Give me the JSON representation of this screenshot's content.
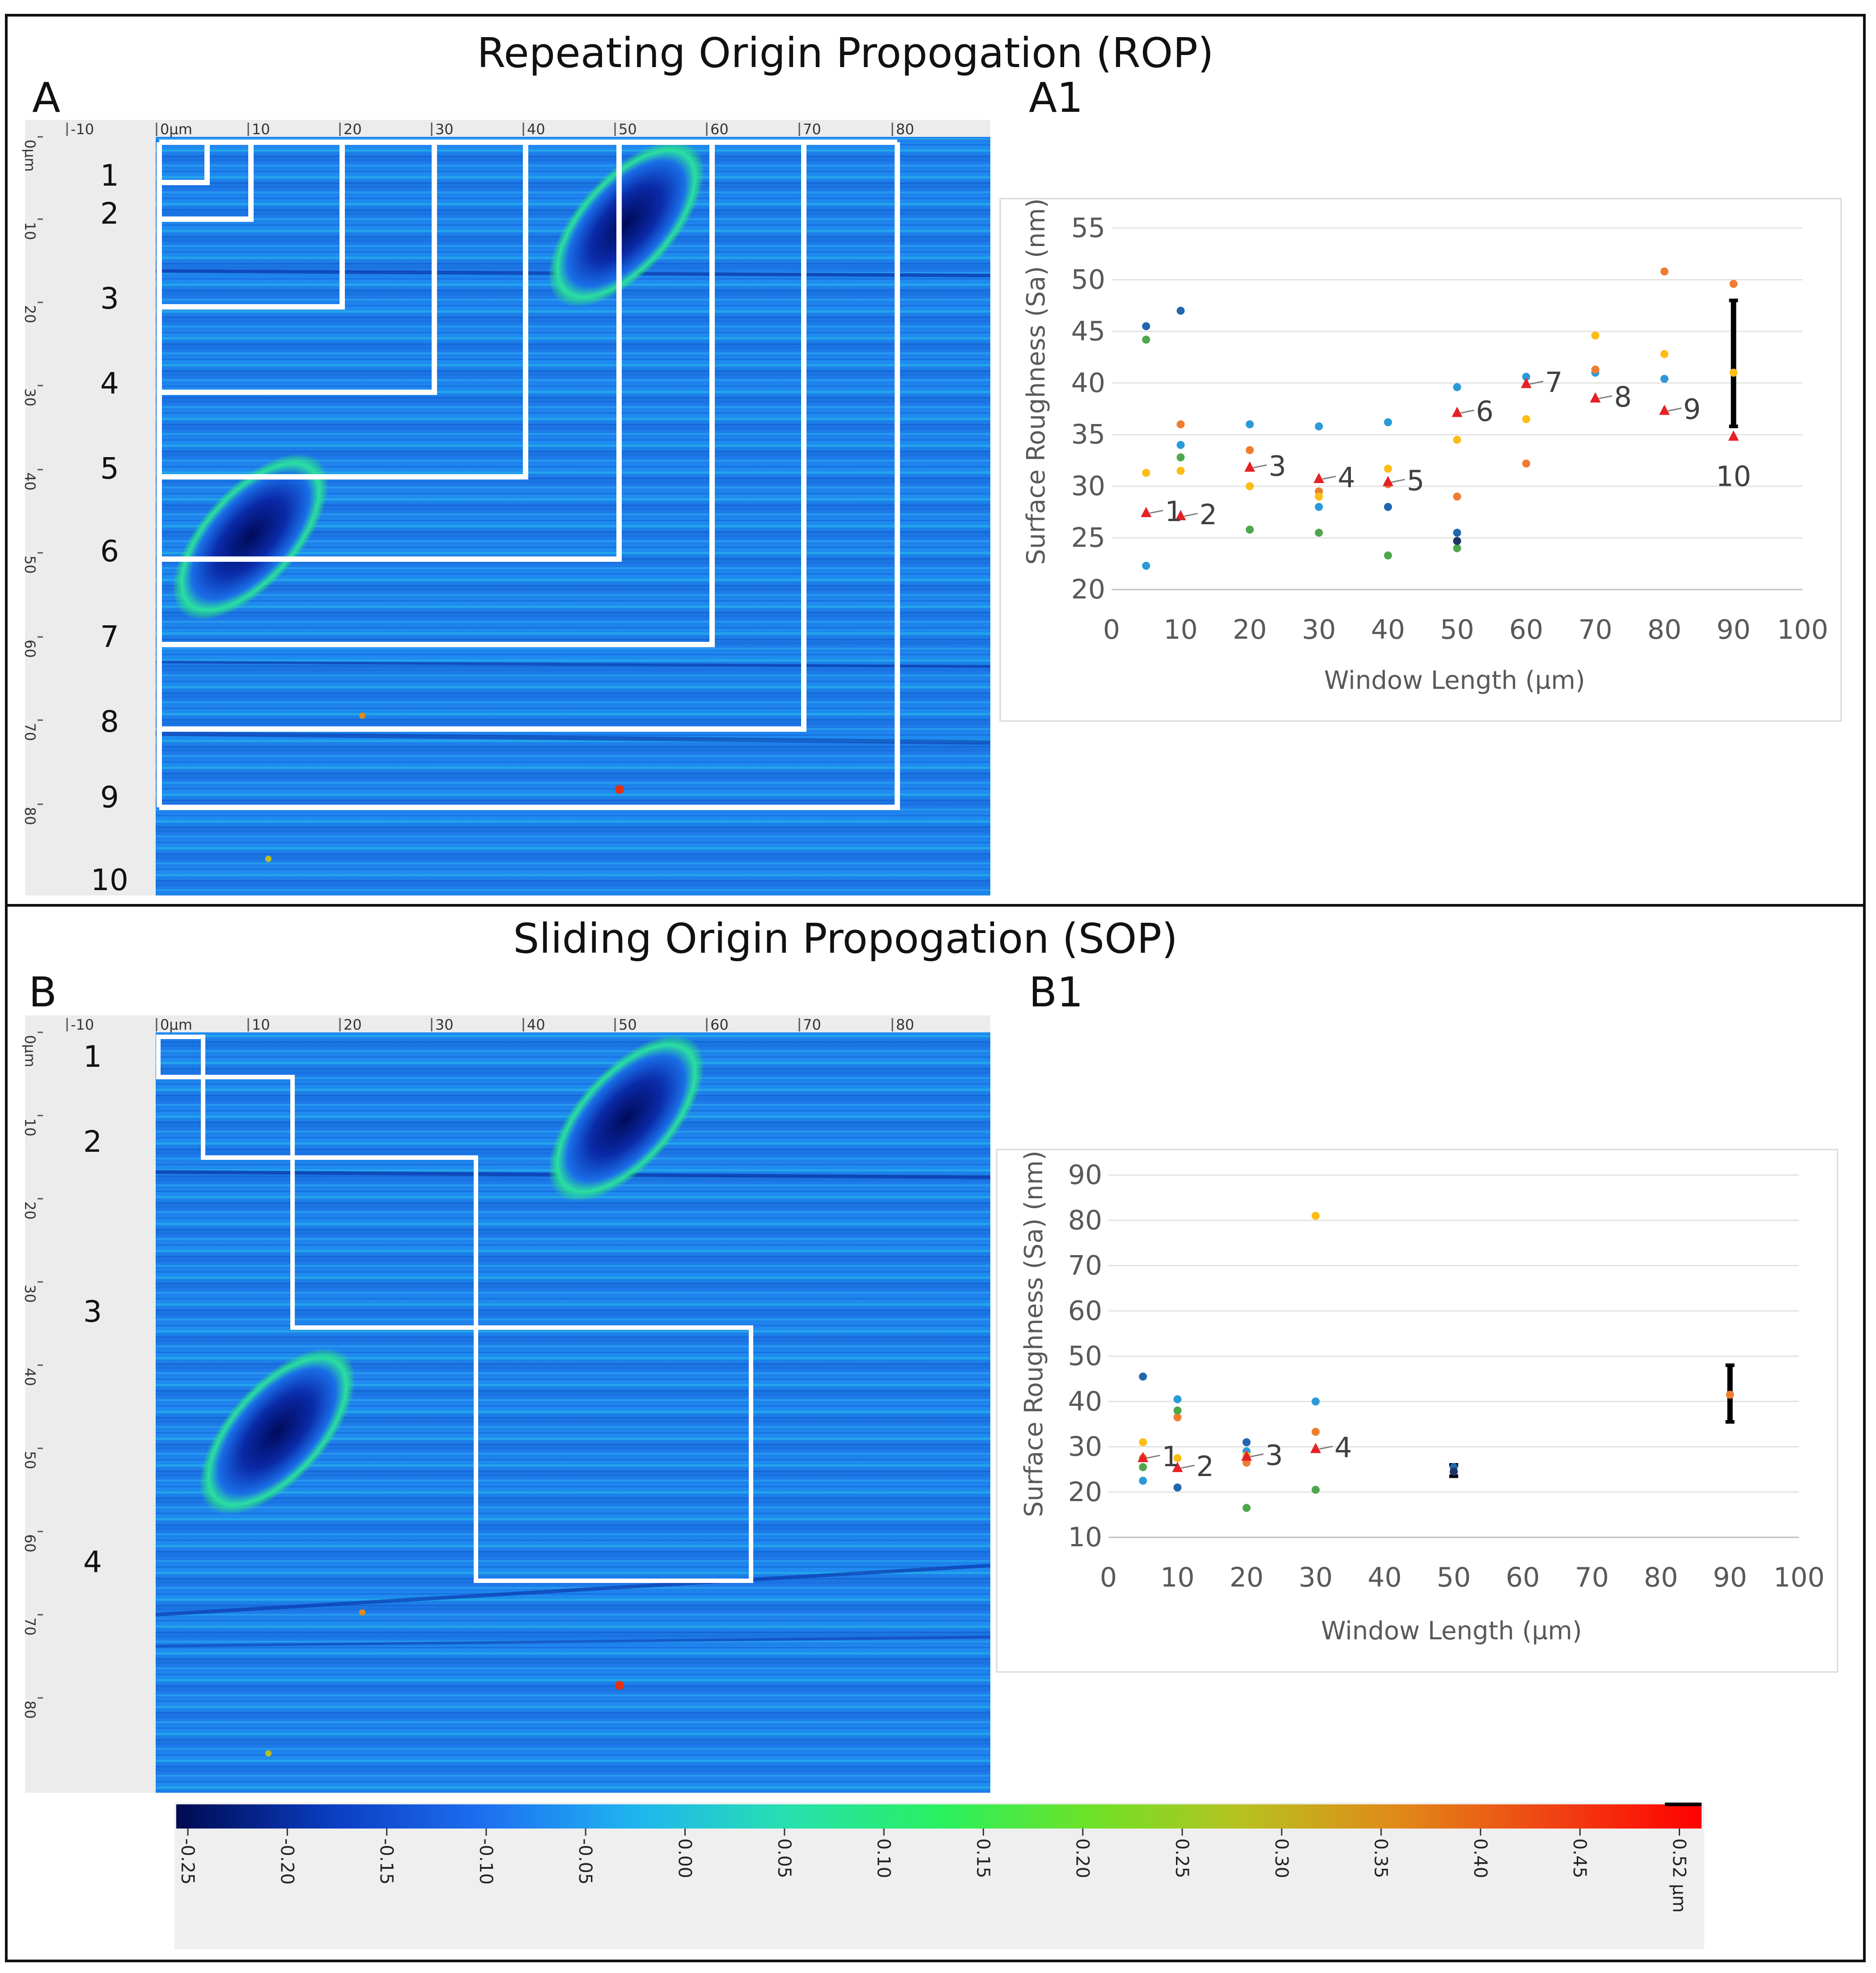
{
  "figure": {
    "panelA_title": "Repeating Origin Propogation (ROP)",
    "panelB_title": "Sliding Origin Propogation (SOP)",
    "labelA": "A",
    "labelA1": "A1",
    "labelB": "B",
    "labelB1": "B1"
  },
  "map": {
    "ruler_top": [
      "-10",
      "0µm",
      "10",
      "20",
      "30",
      "40",
      "50",
      "60",
      "70",
      "80"
    ],
    "ruler_left": [
      "0µm",
      "10",
      "20",
      "30",
      "40",
      "50",
      "60",
      "70",
      "80"
    ],
    "rop_windows": [
      "1",
      "2",
      "3",
      "4",
      "5",
      "6",
      "7",
      "8",
      "9",
      "10"
    ],
    "sop_windows": [
      "1",
      "2",
      "3",
      "4"
    ],
    "colorbar": {
      "ticks": [
        "-0.25",
        "-0.20",
        "-0.15",
        "-0.10",
        "-0.05",
        "0.00",
        "0.05",
        "0.10",
        "0.15",
        "0.20",
        "0.25",
        "0.30",
        "0.35",
        "0.40",
        "0.45",
        "0.52 µm"
      ],
      "colors": [
        "#000a50",
        "#0a3cc0",
        "#1e6ef0",
        "#1fb4f0",
        "#26e0b0",
        "#28f060",
        "#6ee228",
        "#b8c020",
        "#e08a18",
        "#f04414",
        "#ff0000"
      ]
    }
  },
  "chart_data": [
    {
      "id": "A1",
      "type": "scatter",
      "title": "",
      "xlabel": "Window Length (µm)",
      "ylabel": "Surface Roughness (Sa) (nm)",
      "xlim": [
        0,
        100
      ],
      "ylim": [
        20,
        55
      ],
      "xticks": [
        "0",
        "10",
        "20",
        "30",
        "40",
        "50",
        "60",
        "70",
        "80",
        "90",
        "100"
      ],
      "yticks": [
        "20",
        "25",
        "30",
        "35",
        "40",
        "45",
        "50",
        "55"
      ],
      "series": [
        {
          "name": "dark-blue",
          "color": "#2266b0",
          "points": [
            [
              5,
              45.5
            ],
            [
              10,
              47
            ],
            [
              40,
              28
            ],
            [
              50,
              25.5
            ]
          ]
        },
        {
          "name": "light-blue",
          "color": "#2c9ad8",
          "points": [
            [
              5,
              22.3
            ],
            [
              10,
              34
            ],
            [
              20,
              36
            ],
            [
              30,
              35.8
            ],
            [
              30,
              28
            ],
            [
              40,
              36.2
            ],
            [
              50,
              39.6
            ],
            [
              60,
              40.6
            ],
            [
              70,
              41
            ],
            [
              80,
              40.4
            ]
          ]
        },
        {
          "name": "orange",
          "color": "#ee7d31",
          "points": [
            [
              10,
              36
            ],
            [
              20,
              33.5
            ],
            [
              30,
              29.5
            ],
            [
              40,
              30.2
            ],
            [
              50,
              29
            ],
            [
              60,
              32.2
            ],
            [
              70,
              41.3
            ],
            [
              80,
              50.8
            ],
            [
              90,
              49.6
            ]
          ]
        },
        {
          "name": "yellow",
          "color": "#fdbd15",
          "points": [
            [
              5,
              31.3
            ],
            [
              10,
              31.5
            ],
            [
              20,
              30
            ],
            [
              30,
              29
            ],
            [
              40,
              31.7
            ],
            [
              50,
              34.5
            ],
            [
              60,
              36.5
            ],
            [
              70,
              44.6
            ],
            [
              80,
              42.8
            ],
            [
              90,
              41
            ]
          ]
        },
        {
          "name": "green",
          "color": "#4ea74b",
          "points": [
            [
              5,
              44.2
            ],
            [
              10,
              32.8
            ],
            [
              20,
              25.8
            ],
            [
              30,
              25.5
            ],
            [
              40,
              23.3
            ],
            [
              50,
              24
            ]
          ]
        },
        {
          "name": "navy",
          "color": "#1b3565",
          "points": [
            [
              50,
              24.7
            ]
          ]
        },
        {
          "name": "mean",
          "color": "#e52125",
          "marker": "triangle",
          "points": [
            [
              5,
              27.4
            ],
            [
              10,
              27.1
            ],
            [
              20,
              31.8
            ],
            [
              30,
              30.7
            ],
            [
              40,
              30.4
            ],
            [
              50,
              37.1
            ],
            [
              60,
              39.9
            ],
            [
              70,
              38.5
            ],
            [
              80,
              37.3
            ],
            [
              90,
              34.8
            ]
          ]
        }
      ],
      "annotations": [
        {
          "text": "1",
          "x": 5,
          "y": 27.4
        },
        {
          "text": "2",
          "x": 10,
          "y": 27.1
        },
        {
          "text": "3",
          "x": 20,
          "y": 31.8
        },
        {
          "text": "4",
          "x": 30,
          "y": 30.7
        },
        {
          "text": "5",
          "x": 40,
          "y": 30.4
        },
        {
          "text": "6",
          "x": 50,
          "y": 37.1
        },
        {
          "text": "7",
          "x": 60,
          "y": 39.9
        },
        {
          "text": "8",
          "x": 70,
          "y": 38.5
        },
        {
          "text": "9",
          "x": 80,
          "y": 37.3
        },
        {
          "text": "10",
          "x": 90,
          "y": 34.8
        }
      ],
      "error_bar": {
        "x": 90,
        "low": 35.8,
        "high": 48,
        "center": 41.6
      }
    },
    {
      "id": "B1",
      "type": "scatter",
      "title": "",
      "xlabel": "Window Length (µm)",
      "ylabel": "Surface Roughness (Sa) (nm)",
      "xlim": [
        0,
        100
      ],
      "ylim": [
        10,
        90
      ],
      "xticks": [
        "0",
        "10",
        "20",
        "30",
        "40",
        "50",
        "60",
        "70",
        "80",
        "90",
        "100"
      ],
      "yticks": [
        "10",
        "20",
        "30",
        "40",
        "50",
        "60",
        "70",
        "80",
        "90"
      ],
      "series": [
        {
          "name": "dark-blue",
          "color": "#2266b0",
          "points": [
            [
              5,
              45.5
            ],
            [
              10,
              21
            ],
            [
              20,
              31
            ],
            [
              50,
              25.5
            ]
          ]
        },
        {
          "name": "light-blue",
          "color": "#2c9ad8",
          "points": [
            [
              5,
              22.5
            ],
            [
              10,
              40.5
            ],
            [
              20,
              29
            ],
            [
              30,
              40
            ]
          ]
        },
        {
          "name": "orange",
          "color": "#ee7d31",
          "points": [
            [
              5,
              27.5
            ],
            [
              10,
              36.5
            ],
            [
              20,
              26.5
            ],
            [
              30,
              33.3
            ],
            [
              90,
              41.5
            ]
          ]
        },
        {
          "name": "yellow",
          "color": "#fdbd15",
          "points": [
            [
              5,
              31
            ],
            [
              10,
              27.5
            ],
            [
              20,
              28
            ],
            [
              30,
              81
            ]
          ]
        },
        {
          "name": "green",
          "color": "#4ea74b",
          "points": [
            [
              5,
              25.5
            ],
            [
              10,
              38
            ],
            [
              20,
              16.5
            ],
            [
              30,
              20.5
            ]
          ]
        },
        {
          "name": "navy",
          "color": "#1b3565",
          "points": [
            [
              50,
              24.5
            ]
          ]
        },
        {
          "name": "mean",
          "color": "#e52125",
          "marker": "triangle",
          "points": [
            [
              5,
              27.5
            ],
            [
              10,
              25.3
            ],
            [
              20,
              27.8
            ],
            [
              30,
              29.5
            ]
          ]
        }
      ],
      "annotations": [
        {
          "text": "1",
          "x": 5,
          "y": 27.5
        },
        {
          "text": "2",
          "x": 10,
          "y": 25.3
        },
        {
          "text": "3",
          "x": 20,
          "y": 27.8
        },
        {
          "text": "4",
          "x": 30,
          "y": 29.5
        }
      ],
      "error_bar": {
        "x": 90,
        "low": 35.5,
        "high": 48,
        "center": 41.5
      },
      "error_bar_small": {
        "x": 50,
        "low": 23.5,
        "high": 26,
        "center": 24.5
      }
    }
  ]
}
